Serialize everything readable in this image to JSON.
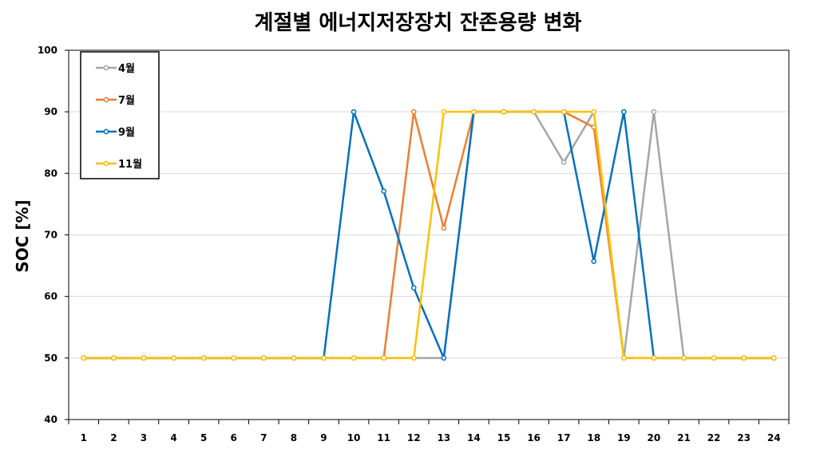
{
  "chart_data": {
    "type": "line",
    "title": "계절별 에너지저장장치 잔존용량 변화",
    "ylabel": "SOC [%]",
    "xlabel": "",
    "x": [
      1,
      2,
      3,
      4,
      5,
      6,
      7,
      8,
      9,
      10,
      11,
      12,
      13,
      14,
      15,
      16,
      17,
      18,
      19,
      20,
      21,
      22,
      23,
      24
    ],
    "ylim": [
      40,
      100
    ],
    "yticks": [
      40,
      50,
      60,
      70,
      80,
      90,
      100
    ],
    "grid": true,
    "legend_position": "top-left",
    "series": [
      {
        "name": "4월",
        "color": "#a5a5a5",
        "values": [
          50,
          50,
          50,
          50,
          50,
          50,
          50,
          50,
          50,
          50,
          50,
          50,
          50,
          90,
          90,
          90,
          81.8,
          90,
          50,
          90,
          50,
          50,
          50,
          50
        ]
      },
      {
        "name": "7월",
        "color": "#ed7d31",
        "values": [
          50,
          50,
          50,
          50,
          50,
          50,
          50,
          50,
          50,
          50,
          50,
          90,
          71.1,
          90,
          90,
          90,
          90,
          87.5,
          50,
          50,
          50,
          50,
          50,
          50
        ]
      },
      {
        "name": "9월",
        "color": "#0070c0",
        "values": [
          50,
          50,
          50,
          50,
          50,
          50,
          50,
          50,
          50,
          90,
          77.1,
          61.4,
          50,
          90,
          90,
          90,
          90,
          65.7,
          90,
          50,
          50,
          50,
          50,
          50
        ]
      },
      {
        "name": "11월",
        "color": "#ffc000",
        "values": [
          50,
          50,
          50,
          50,
          50,
          50,
          50,
          50,
          50,
          50,
          50,
          50,
          90,
          90,
          90,
          90,
          90,
          90,
          50,
          50,
          50,
          50,
          50,
          50
        ]
      }
    ]
  }
}
